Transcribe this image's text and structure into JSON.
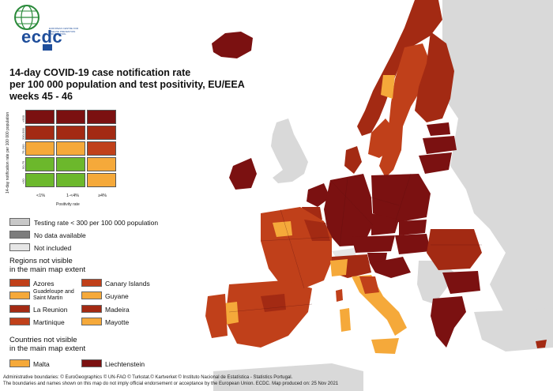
{
  "logo": {
    "name": "ecdc",
    "subtext": "EUROPEAN CENTRE FOR DISEASE PREVENTION AND CONTROL"
  },
  "title": {
    "line1": "14-day COVID-19 case notification rate",
    "line2": "per 100 000 population and test positivity, EU/EEA",
    "line3": "weeks 45 - 46"
  },
  "matrix": {
    "y_label": "14-day notification rate per 100 000 population",
    "x_label": "Positivity rate",
    "row_labels": [
      ">500",
      "200-500",
      "75-200",
      "50-75",
      "<50"
    ],
    "col_labels": [
      "<1%",
      "1-<4%",
      "≥4%"
    ]
  },
  "legend": {
    "testing_rate": "Testing rate < 300 per 100 000 population",
    "no_data": "No data available",
    "not_included": "Not included",
    "regions_header_1": "Regions not visible",
    "regions_header_2": "in the main map extent",
    "regions": [
      {
        "name": "Azores",
        "color": "#c0401a"
      },
      {
        "name": "Canary Islands",
        "color": "#c0401a"
      },
      {
        "name": "Guadeloupe and Saint Martin",
        "color": "#f5a93a"
      },
      {
        "name": "Guyane",
        "color": "#f5a93a"
      },
      {
        "name": "La Reunion",
        "color": "#a32a13"
      },
      {
        "name": "Madeira",
        "color": "#a32a13"
      },
      {
        "name": "Martinique",
        "color": "#c0401a"
      },
      {
        "name": "Mayotte",
        "color": "#f5a93a"
      }
    ],
    "countries_header_1": "Countries not visible",
    "countries_header_2": "in the main map extent",
    "countries": [
      {
        "name": "Malta",
        "color": "#f5a93a"
      },
      {
        "name": "Liechtenstein",
        "color": "#7b1111"
      }
    ]
  },
  "colors": {
    "darkred": "#7b1111",
    "red": "#a32a13",
    "redorange": "#c0401a",
    "orange": "#f5a93a",
    "green": "#6cb82c",
    "grey": "#c8c8c8",
    "darkgrey": "#7d7d7d",
    "lightgrey": "#e6e6e6"
  },
  "footer": {
    "line1": "Administrative boundaries: © EuroGeographics © UN-FAO © Turkstat.© Kartverket © Instituto Nacional de Estatística - Statistics Portugal.",
    "line2": "The boundaries and names shown on this map do not imply official endorsement or acceptance by the European Union. ECDC. Map produced on: 25 Nov 2021"
  }
}
